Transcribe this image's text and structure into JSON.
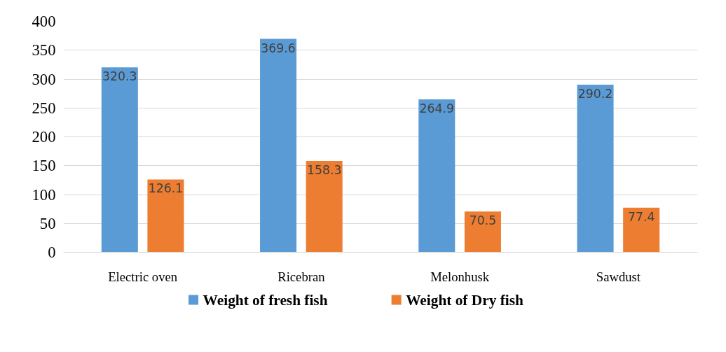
{
  "chart_data": {
    "type": "bar",
    "categories": [
      "Electric oven",
      "Ricebran",
      "Melonhusk",
      "Sawdust"
    ],
    "series": [
      {
        "name": "Weight of fresh fish",
        "color": "#5b9bd5",
        "values": [
          320.3,
          369.6,
          264.9,
          290.2
        ]
      },
      {
        "name": "Weight of Dry fish",
        "color": "#ed7d31",
        "values": [
          126.1,
          158.3,
          70.5,
          77.4
        ]
      }
    ],
    "ylim": [
      0,
      400
    ],
    "yticks": [
      0,
      50,
      100,
      150,
      200,
      250,
      300,
      350,
      400
    ],
    "grid": "y",
    "legend": "bottom",
    "data_labels": true
  }
}
